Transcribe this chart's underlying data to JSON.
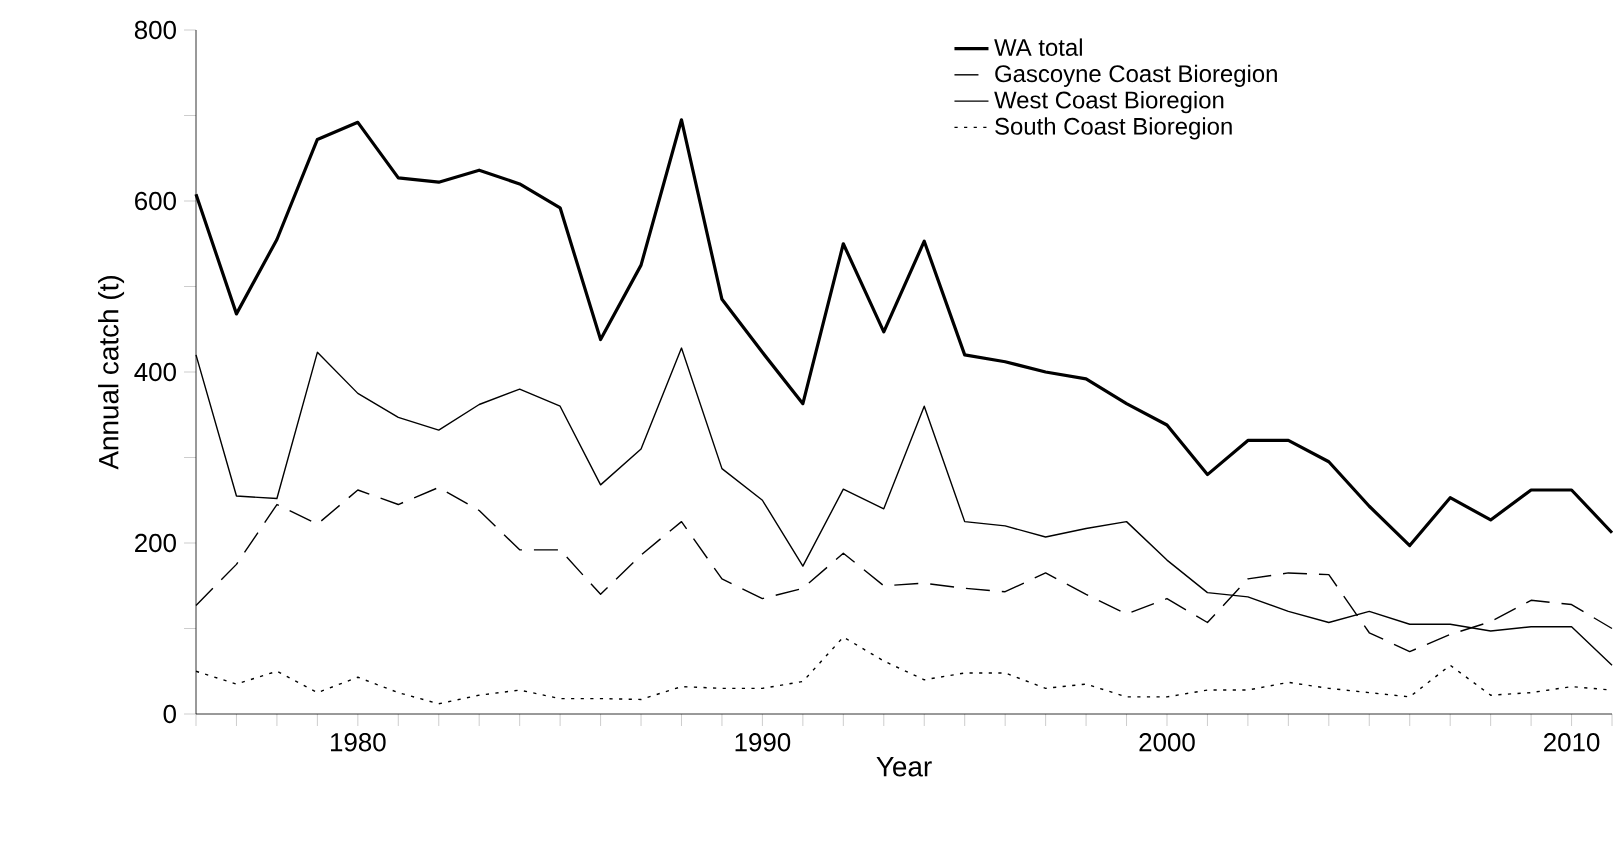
{
  "chart_data": {
    "type": "line",
    "xlabel": "Year",
    "ylabel": "Annual catch (t)",
    "x": [
      1976,
      1977,
      1978,
      1979,
      1980,
      1981,
      1982,
      1983,
      1984,
      1985,
      1986,
      1987,
      1988,
      1989,
      1990,
      1991,
      1992,
      1993,
      1994,
      1995,
      1996,
      1997,
      1998,
      1999,
      2000,
      2001,
      2002,
      2003,
      2004,
      2005,
      2006,
      2007,
      2008,
      2009,
      2010,
      2011
    ],
    "series": [
      {
        "name": "WA total",
        "color": "#000000",
        "line_style": "solid",
        "values": [
          608,
          468,
          555,
          672,
          692,
          627,
          622,
          636,
          620,
          592,
          438,
          525,
          695,
          485,
          423,
          363,
          550,
          447,
          553,
          420,
          412,
          400,
          392,
          363,
          338,
          280,
          320,
          320,
          295,
          243,
          197,
          253,
          227,
          262,
          262,
          212
        ]
      },
      {
        "name": "Gascoyne Coast Bioregion",
        "color": "#000000",
        "line_style": "dashed",
        "values": [
          127,
          175,
          245,
          222,
          262,
          245,
          265,
          238,
          192,
          192,
          140,
          186,
          225,
          158,
          135,
          147,
          188,
          150,
          153,
          147,
          143,
          165,
          140,
          117,
          135,
          107,
          158,
          165,
          163,
          95,
          73,
          93,
          108,
          133,
          128,
          100
        ]
      },
      {
        "name": "West Coast Bioregion",
        "color": "#000000",
        "line_style": "solid",
        "values": [
          420,
          255,
          252,
          423,
          375,
          347,
          332,
          362,
          380,
          360,
          268,
          310,
          428,
          287,
          250,
          173,
          263,
          240,
          360,
          225,
          220,
          207,
          217,
          225,
          180,
          142,
          137,
          120,
          107,
          120,
          105,
          105,
          97,
          102,
          102,
          57
        ]
      },
      {
        "name": "South Coast Bioregion",
        "color": "#000000",
        "line_style": "dotted",
        "values": [
          50,
          35,
          50,
          25,
          43,
          25,
          12,
          22,
          28,
          18,
          18,
          17,
          32,
          30,
          30,
          38,
          90,
          62,
          40,
          48,
          48,
          30,
          35,
          20,
          20,
          28,
          28,
          37,
          30,
          25,
          20,
          57,
          22,
          25,
          32,
          28
        ]
      }
    ],
    "xlim": [
      1976,
      2011
    ],
    "xticks": [
      {
        "value": 1976,
        "label": null
      },
      {
        "value": 1977,
        "label": null
      },
      {
        "value": 1978,
        "label": null
      },
      {
        "value": 1979,
        "label": null
      },
      1980,
      {
        "value": 1981,
        "label": null
      },
      {
        "value": 1982,
        "label": null
      },
      {
        "value": 1983,
        "label": null
      },
      {
        "value": 1984,
        "label": null
      },
      {
        "value": 1985,
        "label": null
      },
      {
        "value": 1986,
        "label": null
      },
      {
        "value": 1987,
        "label": null
      },
      {
        "value": 1988,
        "label": null
      },
      {
        "value": 1989,
        "label": null
      },
      1990,
      {
        "value": 1991,
        "label": null
      },
      {
        "value": 1992,
        "label": null
      },
      {
        "value": 1993,
        "label": null
      },
      {
        "value": 1994,
        "label": null
      },
      {
        "value": 1995,
        "label": null
      },
      {
        "value": 1996,
        "label": null
      },
      {
        "value": 1997,
        "label": null
      },
      {
        "value": 1998,
        "label": null
      },
      {
        "value": 1999,
        "label": null
      },
      2000,
      {
        "value": 2001,
        "label": null
      },
      {
        "value": 2002,
        "label": null
      },
      {
        "value": 2003,
        "label": null
      },
      {
        "value": 2004,
        "label": null
      },
      {
        "value": 2005,
        "label": null
      },
      {
        "value": 2006,
        "label": null
      },
      {
        "value": 2007,
        "label": null
      },
      {
        "value": 2008,
        "label": null
      },
      {
        "value": 2009,
        "label": null
      },
      2010,
      {
        "value": 2011,
        "label": null
      }
    ],
    "ylim": [
      0,
      800
    ],
    "yticks": [
      0,
      {
        "value": 100,
        "label": null
      },
      200,
      {
        "value": 300,
        "label": null
      },
      400,
      {
        "value": 500,
        "label": null
      },
      600,
      {
        "value": 700,
        "label": null
      },
      800
    ],
    "grid": false,
    "legend": "top right",
    "marker": "none"
  }
}
